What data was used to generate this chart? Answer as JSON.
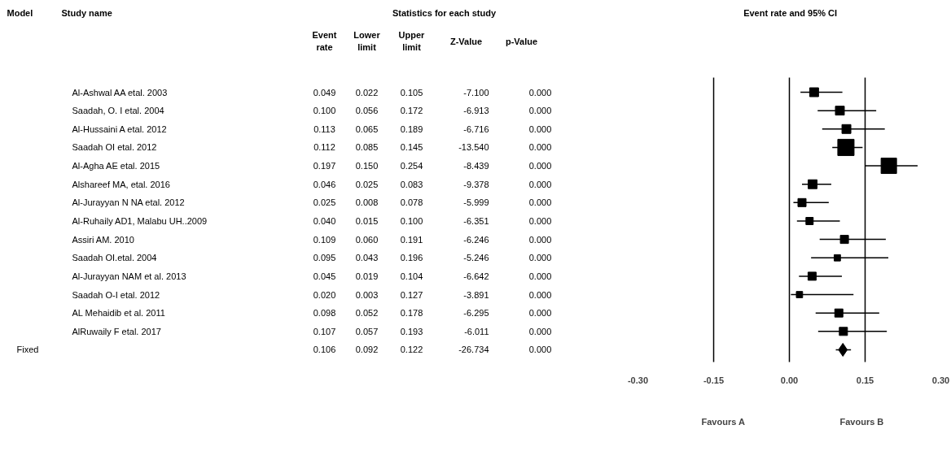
{
  "chart_data": [
    {
      "type": "other",
      "annotations": [
        "Model",
        "Study name",
        "Statistics for each study",
        "Event\nrate",
        "Lower\nlimit",
        "Upper\nlimit",
        "Z-Value",
        "p-Value",
        "Al-Ashwal AA etal. 2003",
        "Saadah, O. I etal. 2004",
        "Al-Hussaini A etal. 2012",
        "Saadah OI etal. 2012",
        "Al-Agha AE etal. 2015",
        "Alshareef MA, etal. 2016",
        "Al-Jurayyan N NA etal. 2012",
        "Al-Ruhaily AD1, Malabu UH..2009",
        "Assiri AM. 2010",
        "Saadah OI.etal. 2004",
        "Al-Jurayyan NAM et al. 2013",
        "Saadah O-I etal. 2012",
        "AL Mehaidib et al. 2011",
        "AlRuwaily F etal. 2017",
        "Fixed",
        "0.049",
        "0.022",
        "0.105",
        "-7.100",
        "0.000",
        "0.100",
        "0.056",
        "0.172",
        "-6.913",
        "0.000",
        "0.113",
        "0.065",
        "0.189",
        "-6.716",
        "0.000",
        "0.112",
        "0.085",
        "0.145",
        "-13.540",
        "0.000",
        "0.197",
        "0.150",
        "0.254",
        "-8.439",
        "0.000",
        "0.046",
        "0.025",
        "0.083",
        "-9.378",
        "0.000",
        "0.025",
        "0.008",
        "0.078",
        "-5.999",
        "0.000",
        "0.040",
        "0.015",
        "0.100",
        "-6.351",
        "0.000",
        "0.109",
        "0.060",
        "0.191",
        "-6.246",
        "0.000",
        "0.095",
        "0.043",
        "0.196",
        "-5.246",
        "0.000",
        "0.045",
        "0.019",
        "0.104",
        "-6.642",
        "0.000",
        "0.020",
        "0.003",
        "0.127",
        "-3.891",
        "0.000",
        "0.098",
        "0.052",
        "0.178",
        "-6.295",
        "0.000",
        "0.107",
        "0.057",
        "0.193",
        "-6.011",
        "0.000",
        "0.106",
        "0.092",
        "0.122",
        "-26.734",
        "0.000"
      ]
    },
    {
      "type": "scatter",
      "orientation": "horizontal",
      "title": "Event rate and 95% CI",
      "categories": [
        null,
        null,
        null,
        null,
        null,
        null,
        null,
        null,
        null,
        null,
        null,
        null,
        null,
        null,
        null
      ],
      "series": [
        {
          "color": "#000000",
          "marker": "square",
          "values": [
            0.049,
            0.1,
            0.113,
            0.112,
            0.197,
            0.046,
            0.025,
            0.04,
            0.109,
            0.095,
            0.045,
            0.02,
            0.098,
            0.107,
            null
          ],
          "errors": [
            [
              0.022,
              0.105
            ],
            [
              0.056,
              0.172
            ],
            [
              0.065,
              0.189
            ],
            [
              0.085,
              0.145
            ],
            [
              0.15,
              0.254
            ],
            [
              0.025,
              0.083
            ],
            [
              0.008,
              0.078
            ],
            [
              0.015,
              0.1
            ],
            [
              0.06,
              0.191
            ],
            [
              0.043,
              0.196
            ],
            [
              0.019,
              0.104
            ],
            [
              0.003,
              0.127
            ],
            [
              0.052,
              0.178
            ],
            [
              0.057,
              0.193
            ],
            null
          ],
          "sizes": [
            0.3,
            0.3,
            0.3,
            1,
            0.9,
            0.3,
            0.25,
            0.2,
            0.25,
            0.15,
            0.25,
            0.15,
            0.25,
            0.25,
            null
          ]
        },
        {
          "color": "#000000",
          "marker": "diamond",
          "values": [
            null,
            null,
            null,
            null,
            null,
            null,
            null,
            null,
            null,
            null,
            null,
            null,
            null,
            null,
            0.106
          ],
          "errors": [
            null,
            null,
            null,
            null,
            null,
            null,
            null,
            null,
            null,
            null,
            null,
            null,
            null,
            null,
            [
              0.092,
              0.122
            ]
          ]
        }
      ],
      "xlim": [
        -0.3,
        0.3
      ],
      "xticks": [
        {
          "value": -0.3,
          "label": "-0.30"
        },
        {
          "value": -0.15,
          "label": "-0.15"
        },
        {
          "value": 0,
          "label": "0.00"
        },
        {
          "value": 0.15,
          "label": "0.15"
        },
        {
          "value": 0.3,
          "label": "0.30"
        }
      ],
      "grid": "x",
      "annotations": [
        "Favours A",
        "Favours B"
      ]
    }
  ]
}
